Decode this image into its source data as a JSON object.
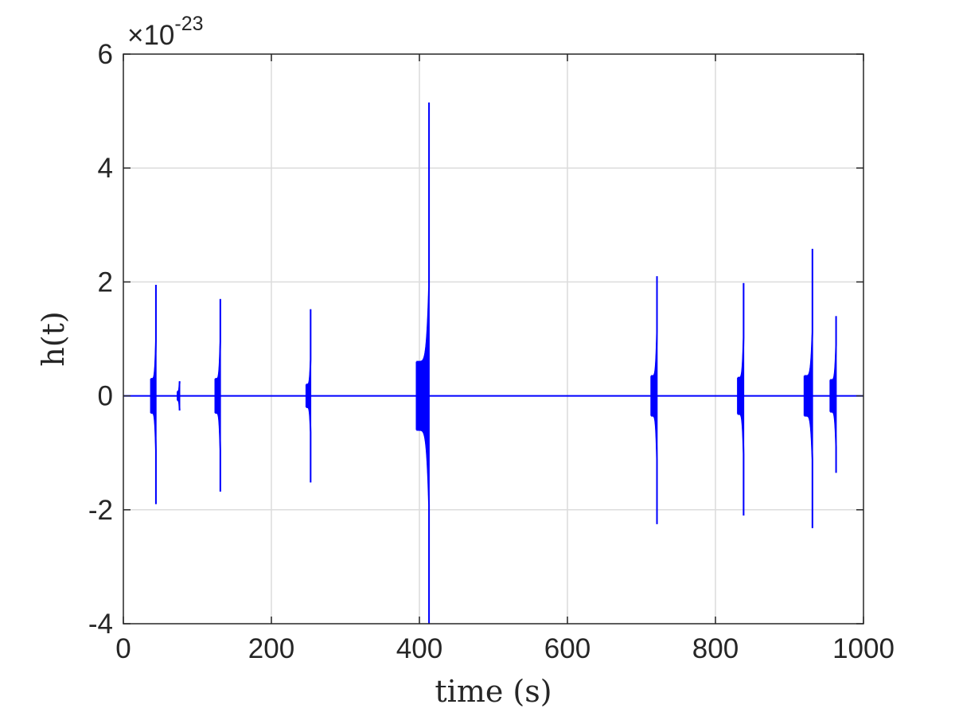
{
  "chart_data": {
    "type": "line",
    "xlabel": "time (s)",
    "ylabel": "h(t)",
    "xlim": [
      0,
      1000
    ],
    "ylim": [
      -4,
      6
    ],
    "y_scale_exponent": {
      "base": "×10",
      "power": "-23"
    },
    "x_ticks": [
      "0",
      "200",
      "400",
      "600",
      "800",
      "1000"
    ],
    "y_ticks": [
      "-4",
      "-2",
      "0",
      "2",
      "4",
      "6"
    ],
    "x_tick_values": [
      0,
      200,
      400,
      600,
      800,
      1000
    ],
    "y_tick_values": [
      -4,
      -2,
      0,
      2,
      4,
      6
    ],
    "grid": true,
    "series": [
      {
        "color": "#0000ff",
        "baseline": 0,
        "bursts": [
          {
            "start": 37,
            "end": 44,
            "base_amp": 0.3,
            "peak_max": 1.95,
            "peak_min": -1.9
          },
          {
            "start": 73,
            "end": 76,
            "base_amp": 0.08,
            "peak_max": 0.22,
            "peak_min": -0.25
          },
          {
            "start": 124,
            "end": 131,
            "base_amp": 0.3,
            "peak_max": 1.7,
            "peak_min": -1.68
          },
          {
            "start": 247,
            "end": 253,
            "base_amp": 0.2,
            "peak_max": 1.52,
            "peak_min": -1.52
          },
          {
            "start": 396,
            "end": 413,
            "base_amp": 0.6,
            "peak_max": 5.15,
            "peak_min": -4.0
          },
          {
            "start": 713,
            "end": 721,
            "base_amp": 0.35,
            "peak_max": 2.1,
            "peak_min": -2.25
          },
          {
            "start": 830,
            "end": 838,
            "base_amp": 0.32,
            "peak_max": 1.98,
            "peak_min": -2.1
          },
          {
            "start": 920,
            "end": 931,
            "base_amp": 0.35,
            "peak_max": 2.58,
            "peak_min": -2.32
          },
          {
            "start": 955,
            "end": 963,
            "base_amp": 0.28,
            "peak_max": 1.4,
            "peak_min": -1.35
          }
        ]
      }
    ]
  }
}
